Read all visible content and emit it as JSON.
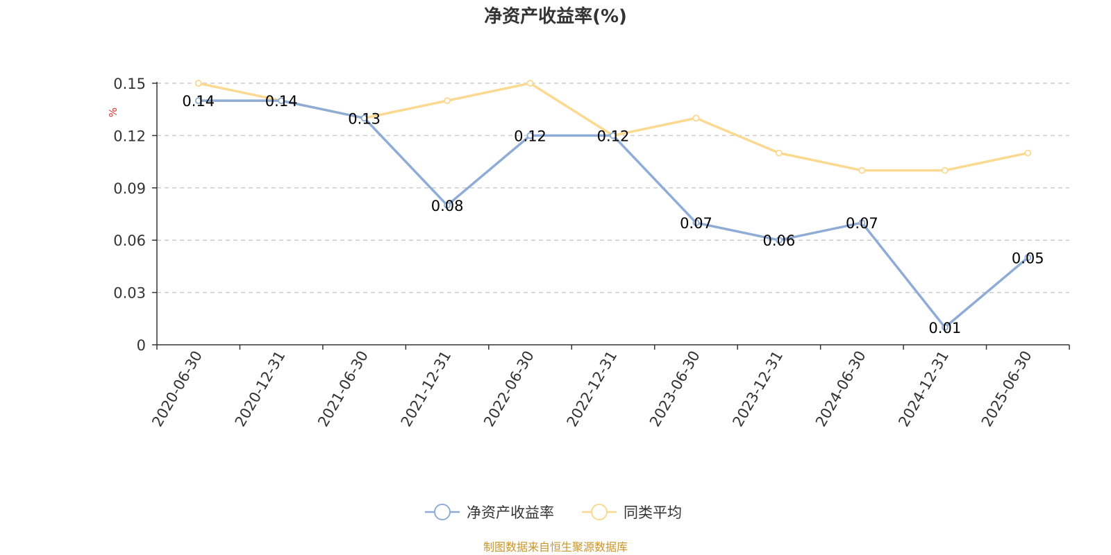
{
  "chart_data": {
    "type": "line",
    "title": "净资产收益率(%)",
    "ylabel": "%",
    "xlabel": "",
    "categories": [
      "2020-06-30",
      "2020-12-31",
      "2021-06-30",
      "2021-12-31",
      "2022-06-30",
      "2022-12-31",
      "2023-06-30",
      "2023-12-31",
      "2024-06-30",
      "2024-12-31",
      "2025-06-30"
    ],
    "ylim": [
      0,
      0.15
    ],
    "yticks": [
      "0",
      "0.03",
      "0.06",
      "0.09",
      "0.12",
      "0.15"
    ],
    "grid": true,
    "legend_position": "bottom",
    "series": [
      {
        "name": "净资产收益率",
        "color": "#8eacd6",
        "values": [
          0.14,
          0.14,
          0.13,
          0.08,
          0.12,
          0.12,
          0.07,
          0.06,
          0.07,
          0.01,
          0.05
        ],
        "labels": [
          "0.14",
          "0.14",
          "0.13",
          "0.08",
          "0.12",
          "0.12",
          "0.07",
          "0.06",
          "0.07",
          "0.01",
          "0.05"
        ]
      },
      {
        "name": "同类平均",
        "color": "#fbd991",
        "values": [
          0.15,
          0.14,
          0.13,
          0.14,
          0.15,
          0.12,
          0.13,
          0.11,
          0.1,
          0.1,
          0.11
        ]
      }
    ]
  },
  "source_note": "制图数据来自恒生聚源数据库"
}
